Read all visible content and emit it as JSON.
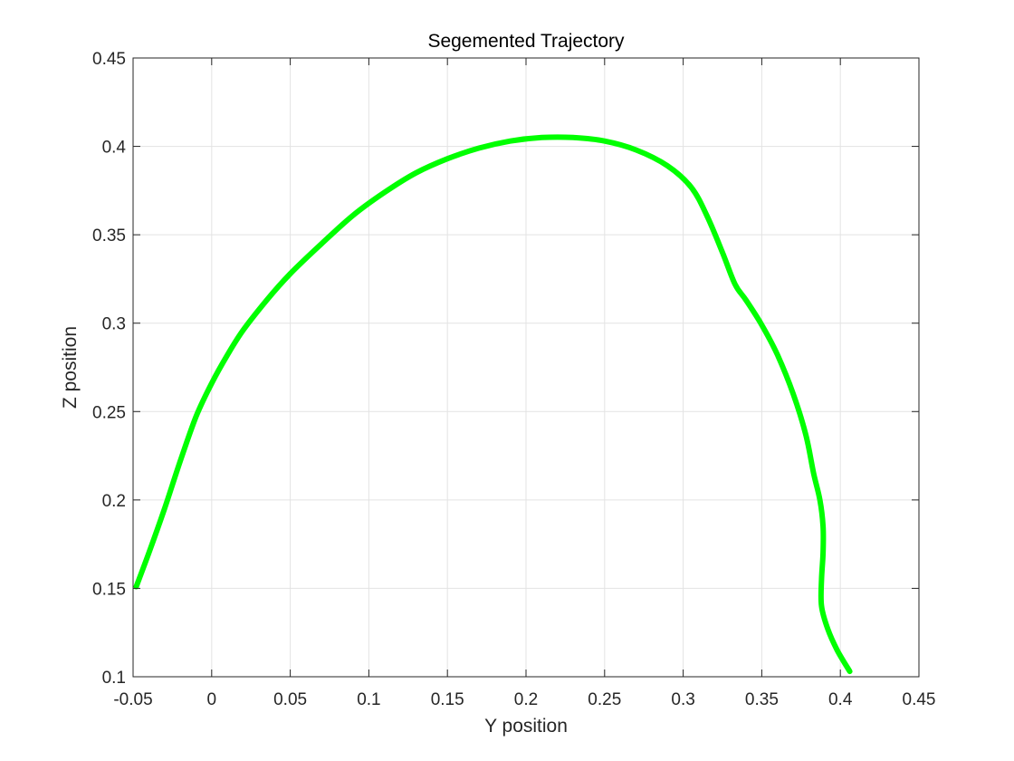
{
  "chart_data": {
    "type": "line",
    "title": "Segemented Trajectory",
    "xlabel": "Y position",
    "ylabel": "Z position",
    "xlim": [
      -0.05,
      0.45
    ],
    "ylim": [
      0.1,
      0.45
    ],
    "grid": true,
    "xticks": [
      "-0.05",
      "0",
      "0.05",
      "0.1",
      "0.15",
      "0.2",
      "0.25",
      "0.3",
      "0.35",
      "0.4",
      "0.45"
    ],
    "yticks": [
      "0.1",
      "0.15",
      "0.2",
      "0.25",
      "0.3",
      "0.35",
      "0.4",
      "0.45"
    ],
    "series": [
      {
        "color": "#00ff00",
        "x": [
          -0.048,
          -0.04,
          -0.03,
          -0.02,
          -0.01,
          0.0,
          0.01,
          0.02,
          0.035,
          0.05,
          0.07,
          0.09,
          0.11,
          0.13,
          0.15,
          0.17,
          0.19,
          0.21,
          0.23,
          0.25,
          0.27,
          0.29,
          0.305,
          0.315,
          0.325,
          0.333,
          0.34,
          0.35,
          0.36,
          0.37,
          0.378,
          0.383,
          0.387,
          0.389,
          0.389,
          0.388,
          0.388,
          0.392,
          0.398,
          0.406
        ],
        "y": [
          0.151,
          0.17,
          0.195,
          0.222,
          0.247,
          0.266,
          0.282,
          0.296,
          0.313,
          0.328,
          0.345,
          0.361,
          0.374,
          0.385,
          0.393,
          0.399,
          0.403,
          0.405,
          0.405,
          0.403,
          0.398,
          0.389,
          0.377,
          0.361,
          0.34,
          0.322,
          0.313,
          0.299,
          0.282,
          0.26,
          0.237,
          0.215,
          0.2,
          0.185,
          0.17,
          0.155,
          0.14,
          0.127,
          0.115,
          0.103
        ]
      }
    ]
  }
}
